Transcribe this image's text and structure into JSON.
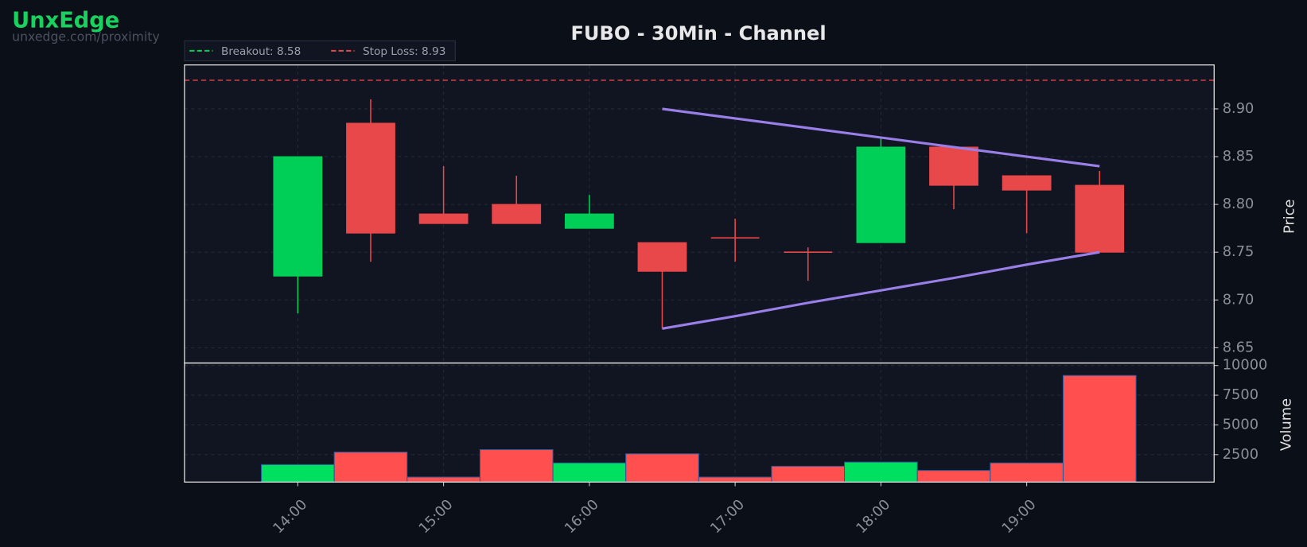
{
  "brand": {
    "name": "UnxEdge",
    "url": "unxedge.com/proximity"
  },
  "chart_data": {
    "type": "candlestick",
    "title": "FUBO - 30Min - Channel",
    "categories": [
      "14:00",
      null,
      "15:00",
      null,
      "16:00",
      null,
      "17:00",
      null,
      "18:00",
      null,
      "19:00",
      null
    ],
    "open": [
      8.725,
      8.885,
      8.79,
      8.8,
      8.775,
      8.76,
      8.765,
      8.75,
      8.76,
      8.86,
      8.83,
      8.82
    ],
    "high": [
      8.85,
      8.91,
      8.84,
      8.83,
      8.81,
      8.76,
      8.785,
      8.755,
      8.87,
      8.86,
      8.83,
      8.835
    ],
    "low": [
      8.686,
      8.74,
      8.78,
      8.78,
      8.775,
      8.67,
      8.74,
      8.72,
      8.76,
      8.795,
      8.77,
      8.75
    ],
    "close": [
      8.85,
      8.77,
      8.78,
      8.78,
      8.79,
      8.73,
      8.765,
      8.75,
      8.86,
      8.82,
      8.815,
      8.75
    ],
    "volume": [
      1660,
      2710,
      610,
      2920,
      1800,
      2570,
      610,
      1520,
      1870,
      1170,
      1800,
      9160
    ],
    "up_color": "#00cf57",
    "down_color": "#e8484a",
    "volume_up_color": "#00e060",
    "volume_down_color": "#ff4f4f",
    "ylim": [
      8.634,
      8.946
    ],
    "yticks": [
      8.65,
      {
        "value": 8.7,
        "label": "8.70"
      },
      8.75,
      {
        "value": 8.8,
        "label": "8.80"
      },
      8.85,
      {
        "value": 8.9,
        "label": "8.90"
      }
    ],
    "ylabel": "Price",
    "volume_ylim": [
      190,
      10210
    ],
    "volume_yticks": [
      2500,
      5000,
      7500,
      10000
    ],
    "volume_label": "Volume",
    "grid": true,
    "levels": [
      {
        "label": "Breakout: 8.58",
        "value": 8.58,
        "color": "#00cf57"
      },
      {
        "label": "Stop Loss: 8.93",
        "value": 8.93,
        "color": "#e8484a"
      }
    ],
    "channel": {
      "color": "#9b7fe8",
      "upper": [
        null,
        null,
        null,
        null,
        null,
        8.9,
        8.89,
        8.88,
        8.87,
        8.86,
        8.85,
        8.84
      ],
      "lower": [
        null,
        null,
        null,
        null,
        null,
        8.67,
        8.683,
        8.697,
        8.71,
        8.723,
        8.737,
        8.75
      ]
    }
  }
}
